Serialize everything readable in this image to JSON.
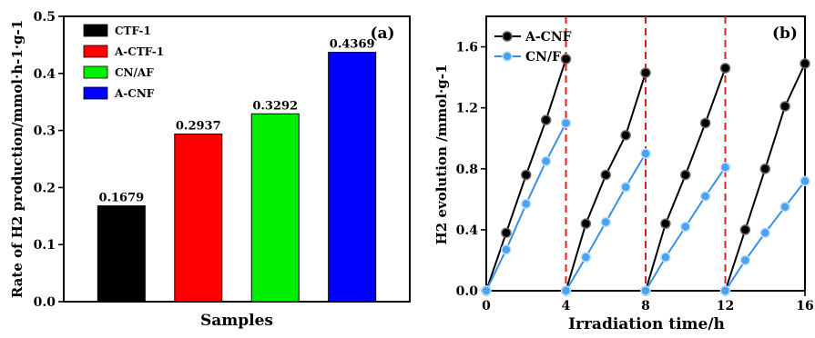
{
  "chart_data": [
    {
      "type": "bar",
      "panel_label": "(a)",
      "xlabel": "Samples",
      "ylabel": "Rate of H2 production/mmol·h-1·g-1",
      "ylim": [
        0,
        0.5
      ],
      "yticks": [
        "0.0",
        "0.1",
        "0.2",
        "0.3",
        "0.4",
        "0.5"
      ],
      "categories": [
        "CTF-1",
        "A-CTF-1",
        "CN/AF",
        "A-CNF"
      ],
      "values": [
        0.1679,
        0.2937,
        0.3292,
        0.4369
      ],
      "value_labels": [
        "0.1679",
        "0.2937",
        "0.3292",
        "0.4369"
      ],
      "colors": [
        "#000000",
        "#ff0000",
        "#00ee00",
        "#0000ff"
      ],
      "legend": [
        "CTF-1",
        "A-CTF-1",
        "CN/AF",
        "A-CNF"
      ],
      "legend_position": "top-left",
      "grid": false
    },
    {
      "type": "line",
      "panel_label": "(b)",
      "xlabel": "Irradiation time/h",
      "ylabel": "H2 evolution /mmol·g-1",
      "xlim": [
        0,
        16
      ],
      "ylim": [
        0,
        1.8
      ],
      "xticks": [
        "0",
        "4",
        "8",
        "12",
        "16"
      ],
      "yticks": [
        "0.0",
        "0.4",
        "0.8",
        "1.2",
        "1.6"
      ],
      "vlines": [
        4,
        8,
        12
      ],
      "legend_position": "top-left",
      "grid": false,
      "series": [
        {
          "name": "A-CNF",
          "color": "#000000",
          "cycles": [
            [
              [
                0,
                0
              ],
              [
                1,
                0.38
              ],
              [
                2,
                0.76
              ],
              [
                3,
                1.12
              ],
              [
                4,
                1.52
              ]
            ],
            [
              [
                4,
                0
              ],
              [
                5,
                0.44
              ],
              [
                6,
                0.76
              ],
              [
                7,
                1.02
              ],
              [
                8,
                1.43
              ]
            ],
            [
              [
                8,
                0
              ],
              [
                9,
                0.44
              ],
              [
                10,
                0.76
              ],
              [
                11,
                1.1
              ],
              [
                12,
                1.46
              ]
            ],
            [
              [
                12,
                0
              ],
              [
                13,
                0.4
              ],
              [
                14,
                0.8
              ],
              [
                15,
                1.21
              ],
              [
                16,
                1.49
              ]
            ]
          ]
        },
        {
          "name": "CN/F",
          "color": "#3a8fe6",
          "cycles": [
            [
              [
                0,
                0
              ],
              [
                1,
                0.27
              ],
              [
                2,
                0.57
              ],
              [
                3,
                0.85
              ],
              [
                4,
                1.1
              ]
            ],
            [
              [
                4,
                0
              ],
              [
                5,
                0.22
              ],
              [
                6,
                0.45
              ],
              [
                7,
                0.68
              ],
              [
                8,
                0.9
              ]
            ],
            [
              [
                8,
                0
              ],
              [
                9,
                0.22
              ],
              [
                10,
                0.42
              ],
              [
                11,
                0.62
              ],
              [
                12,
                0.81
              ]
            ],
            [
              [
                12,
                0
              ],
              [
                13,
                0.2
              ],
              [
                14,
                0.38
              ],
              [
                15,
                0.55
              ],
              [
                16,
                0.72
              ]
            ]
          ]
        }
      ]
    }
  ]
}
